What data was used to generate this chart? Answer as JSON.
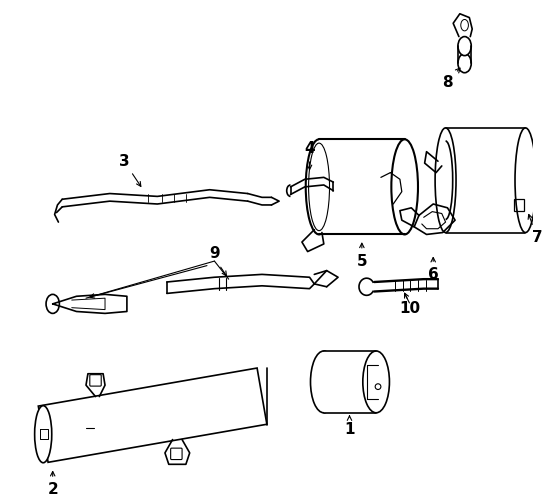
{
  "background_color": "#ffffff",
  "line_color": "#000000",
  "line_width": 1.2,
  "figsize": [
    5.5,
    4.95
  ],
  "dpi": 100
}
